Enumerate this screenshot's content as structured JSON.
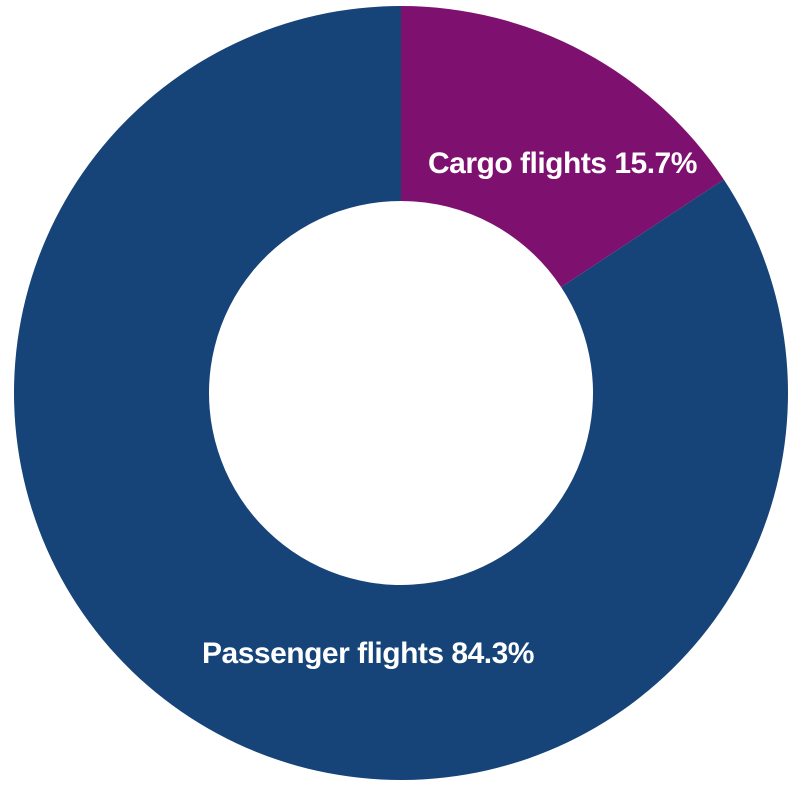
{
  "page": {
    "background": "#FFFFFF"
  },
  "chart_data": {
    "type": "pie",
    "variant": "donut",
    "title": "",
    "start_angle_deg": 0,
    "direction": "clockwise",
    "inner_radius_ratio": 0.497,
    "legend_position": "none",
    "labels_on_slices": true,
    "label_text_color": "#FFFFFF",
    "slices": [
      {
        "name": "Cargo flights",
        "value_pct": 15.7,
        "label": "Cargo flights 15.7%",
        "color": "#7E1170"
      },
      {
        "name": "Passenger flights",
        "value_pct": 84.3,
        "label": "Passenger flights 84.3%",
        "color": "#164478"
      }
    ]
  }
}
